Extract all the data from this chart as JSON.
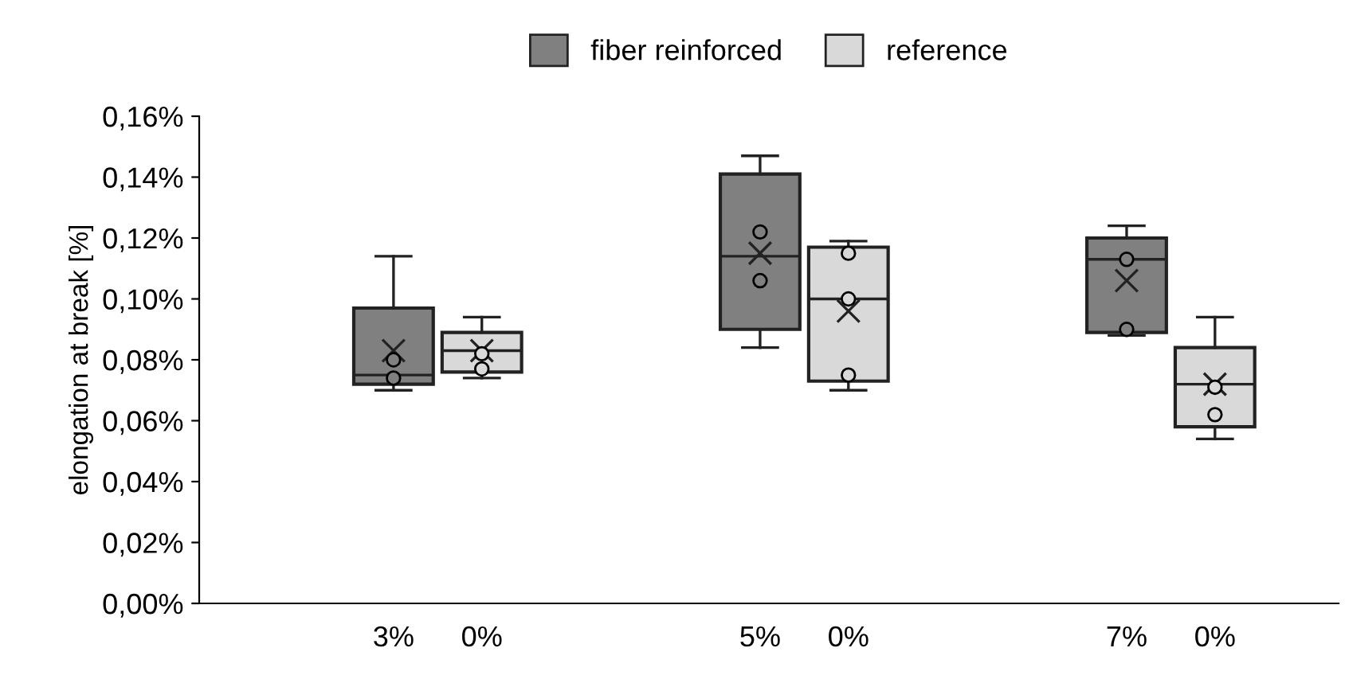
{
  "chart_data": {
    "type": "box",
    "ylabel": "elongation at break [%]",
    "categories": [
      "3%",
      "0%",
      "5%",
      "0%",
      "7%",
      "0%"
    ],
    "ylim": [
      0,
      0.16
    ],
    "yticks": [
      {
        "value": 0,
        "label": "0,00%"
      },
      {
        "value": 0.02,
        "label": "0,02%"
      },
      {
        "value": 0.04,
        "label": "0,04%"
      },
      {
        "value": 0.06,
        "label": "0,06%"
      },
      {
        "value": 0.08,
        "label": "0,08%"
      },
      {
        "value": 0.1,
        "label": "0,10%"
      },
      {
        "value": 0.12,
        "label": "0,12%"
      },
      {
        "value": 0.14,
        "label": "0,14%"
      },
      {
        "value": 0.16,
        "label": "0,16%"
      }
    ],
    "grid": false,
    "legend": "top",
    "series": [
      {
        "name": "fiber reinforced",
        "color": "#808080",
        "boxes": [
          {
            "low": 0.07,
            "q1": 0.072,
            "median": 0.075,
            "q3": 0.097,
            "high": 0.114,
            "mean": 0.083,
            "outliers": [
              0.08,
              0.074
            ]
          },
          null,
          {
            "low": 0.084,
            "q1": 0.09,
            "median": 0.114,
            "q3": 0.141,
            "high": 0.147,
            "mean": 0.115,
            "outliers": [
              0.122,
              0.106
            ]
          },
          null,
          {
            "low": 0.088,
            "q1": 0.089,
            "median": 0.113,
            "q3": 0.12,
            "high": 0.124,
            "mean": 0.106,
            "outliers": [
              0.113,
              0.09
            ]
          },
          null
        ]
      },
      {
        "name": "reference",
        "color": "#d9d9d9",
        "boxes": [
          null,
          {
            "low": 0.074,
            "q1": 0.076,
            "median": 0.083,
            "q3": 0.089,
            "high": 0.094,
            "mean": 0.083,
            "outliers": [
              0.082,
              0.077
            ]
          },
          null,
          {
            "low": 0.07,
            "q1": 0.073,
            "median": 0.1,
            "q3": 0.117,
            "high": 0.119,
            "mean": 0.096,
            "outliers": [
              0.115,
              0.1,
              0.075
            ]
          },
          null,
          {
            "low": 0.054,
            "q1": 0.058,
            "median": 0.072,
            "q3": 0.084,
            "high": 0.094,
            "mean": 0.072,
            "outliers": [
              0.071,
              0.062
            ]
          }
        ]
      }
    ]
  }
}
